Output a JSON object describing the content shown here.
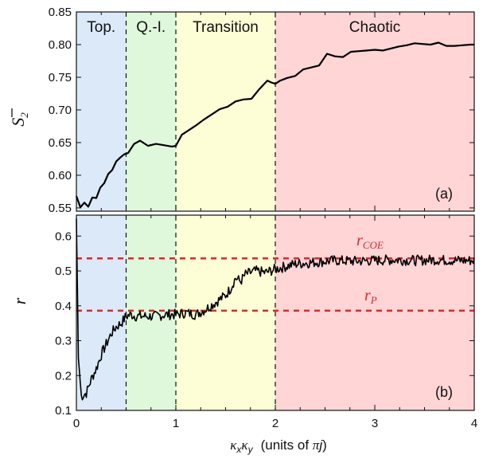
{
  "chart_data": [
    {
      "panel": "(a)",
      "type": "line",
      "ylabel": "S̄2",
      "ylim": [
        0.545,
        0.85
      ],
      "xlim": [
        0,
        4
      ],
      "yticks": [
        "0.55",
        "0.60",
        "0.65",
        "0.70",
        "0.75",
        "0.80",
        "0.85"
      ],
      "regions": [
        {
          "label": "Top.",
          "x0": 0,
          "x1": 0.5,
          "color": "#dbe9f8"
        },
        {
          "label": "Q.-I.",
          "x0": 0.5,
          "x1": 1,
          "color": "#dff8dc"
        },
        {
          "label": "Transition",
          "x0": 1,
          "x1": 2,
          "color": "#fdfdd6"
        },
        {
          "label": "Chaotic",
          "x0": 2,
          "x1": 4,
          "color": "#ffd5d6"
        }
      ],
      "x": [
        0.0,
        0.04,
        0.08,
        0.12,
        0.16,
        0.2,
        0.24,
        0.28,
        0.32,
        0.36,
        0.4,
        0.44,
        0.48,
        0.52,
        0.58,
        0.64,
        0.72,
        0.8,
        0.88,
        0.96,
        1.0,
        1.06,
        1.12,
        1.2,
        1.28,
        1.36,
        1.44,
        1.52,
        1.6,
        1.68,
        1.76,
        1.84,
        1.92,
        1.96,
        2.0,
        2.05,
        2.12,
        2.2,
        2.28,
        2.36,
        2.44,
        2.52,
        2.6,
        2.68,
        2.76,
        2.84,
        2.92,
        3.0,
        3.08,
        3.16,
        3.24,
        3.32,
        3.4,
        3.48,
        3.56,
        3.64,
        3.72,
        3.8,
        3.88,
        3.96,
        4.0
      ],
      "values": [
        0.568,
        0.551,
        0.558,
        0.552,
        0.566,
        0.565,
        0.581,
        0.588,
        0.602,
        0.608,
        0.621,
        0.627,
        0.632,
        0.634,
        0.648,
        0.653,
        0.645,
        0.648,
        0.646,
        0.644,
        0.645,
        0.662,
        0.668,
        0.676,
        0.685,
        0.693,
        0.701,
        0.705,
        0.713,
        0.716,
        0.717,
        0.732,
        0.745,
        0.742,
        0.74,
        0.745,
        0.749,
        0.752,
        0.762,
        0.765,
        0.768,
        0.786,
        0.782,
        0.781,
        0.789,
        0.79,
        0.791,
        0.792,
        0.791,
        0.794,
        0.797,
        0.799,
        0.802,
        0.801,
        0.8,
        0.803,
        0.798,
        0.798,
        0.799,
        0.8,
        0.8
      ]
    },
    {
      "panel": "(b)",
      "type": "line",
      "ylabel": "r",
      "xlabel": "κxκy  (units of πj)",
      "ylim": [
        0.1,
        0.66
      ],
      "xlim": [
        0,
        4
      ],
      "xticks": [
        "0",
        "1",
        "2",
        "3",
        "4"
      ],
      "yticks": [
        "0.1",
        "0.2",
        "0.3",
        "0.4",
        "0.5",
        "0.6"
      ],
      "reference_lines": [
        {
          "label": "rCOE",
          "value": 0.536,
          "color": "#e0262a"
        },
        {
          "label": "rP",
          "value": 0.386,
          "color": "#e0262a"
        }
      ],
      "x": [
        0.0,
        0.02,
        0.05,
        0.1,
        0.15,
        0.2,
        0.25,
        0.3,
        0.35,
        0.4,
        0.45,
        0.5,
        0.55,
        0.6,
        0.7,
        0.8,
        0.9,
        1.0,
        1.1,
        1.2,
        1.3,
        1.4,
        1.5,
        1.55,
        1.6,
        1.65,
        1.7,
        1.8,
        1.9,
        2.0,
        2.2,
        2.4,
        2.6,
        2.8,
        3.0,
        3.2,
        3.4,
        3.6,
        3.8,
        4.0
      ],
      "values": [
        0.65,
        0.25,
        0.14,
        0.15,
        0.19,
        0.22,
        0.26,
        0.29,
        0.32,
        0.34,
        0.35,
        0.37,
        0.375,
        0.37,
        0.37,
        0.37,
        0.375,
        0.375,
        0.38,
        0.375,
        0.39,
        0.41,
        0.43,
        0.45,
        0.48,
        0.47,
        0.49,
        0.5,
        0.495,
        0.505,
        0.52,
        0.525,
        0.53,
        0.528,
        0.53,
        0.532,
        0.53,
        0.532,
        0.53,
        0.53
      ],
      "noise_amplitude": 0.015
    }
  ],
  "labels": {
    "panel_a": "(a)",
    "panel_b": "(b)",
    "ylabel_a_main": "S",
    "ylabel_a_sub": "2",
    "ylabel_b": "r",
    "xlabel_main": "κ",
    "xlabel_sub1": "x",
    "xlabel_mid": "κ",
    "xlabel_sub2": "y",
    "xlabel_units": "(units of ",
    "xlabel_pi": "π",
    "xlabel_j": "j",
    "xlabel_close": ")",
    "ref_coe_main": "r",
    "ref_coe_sub": "COE",
    "ref_p_main": "r",
    "ref_p_sub": "P"
  }
}
